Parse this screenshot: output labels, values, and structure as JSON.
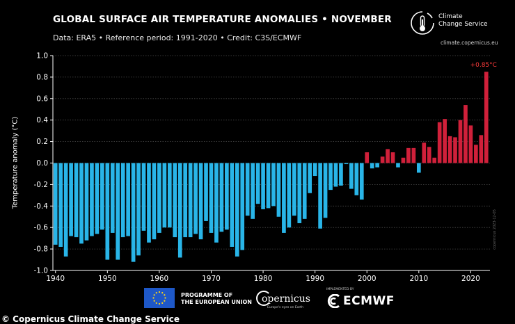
{
  "title": "GLOBAL SURFACE AIR TEMPERATURE ANOMALIES • NOVEMBER",
  "subtitle": "Data: ERA5 • Reference period: 1991-2020 • Credit: C3S/ECMWF",
  "logo": {
    "name": "Climate\nChange Service",
    "url": "climate.copernicus.eu"
  },
  "watermark": "copernicus 2023-12-05",
  "footer": {
    "eu_text": "PROGRAMME OF\nTHE EUROPEAN UNION",
    "copernicus": "opernicus",
    "copernicus_sub": "Europe's eyes on Earth",
    "ecmwf_implemented": "IMPLEMENTED BY",
    "ecmwf": "ECMWF",
    "credit_cut": "© Copernicus Climate Change Service"
  },
  "colors": {
    "positive": "#d0203a",
    "negative": "#29b5e8",
    "highlight": "#ff3b3b",
    "background": "#000000"
  },
  "chart_data": {
    "type": "bar",
    "title": "GLOBAL SURFACE AIR TEMPERATURE ANOMALIES • NOVEMBER",
    "xlabel": "",
    "ylabel": "Temperature anomaly (°C)",
    "ylim": [
      -1.0,
      1.0
    ],
    "yticks": [
      "-1.0",
      "-0.8",
      "-0.6",
      "-0.4",
      "-0.2",
      "0.0",
      "0.2",
      "0.4",
      "0.6",
      "0.8",
      "1.0"
    ],
    "xticks": [
      "1940",
      "1950",
      "1960",
      "1970",
      "1980",
      "1990",
      "2000",
      "2010",
      "2020"
    ],
    "grid": "horizontal",
    "annotation": {
      "label": "+0.85°C",
      "year": 2023
    },
    "x": [
      1940,
      1941,
      1942,
      1943,
      1944,
      1945,
      1946,
      1947,
      1948,
      1949,
      1950,
      1951,
      1952,
      1953,
      1954,
      1955,
      1956,
      1957,
      1958,
      1959,
      1960,
      1961,
      1962,
      1963,
      1964,
      1965,
      1966,
      1967,
      1968,
      1969,
      1970,
      1971,
      1972,
      1973,
      1974,
      1975,
      1976,
      1977,
      1978,
      1979,
      1980,
      1981,
      1982,
      1983,
      1984,
      1985,
      1986,
      1987,
      1988,
      1989,
      1990,
      1991,
      1992,
      1993,
      1994,
      1995,
      1996,
      1997,
      1998,
      1999,
      2000,
      2001,
      2002,
      2003,
      2004,
      2005,
      2006,
      2007,
      2008,
      2009,
      2010,
      2011,
      2012,
      2013,
      2014,
      2015,
      2016,
      2017,
      2018,
      2019,
      2020,
      2021,
      2022,
      2023
    ],
    "values": [
      -0.76,
      -0.78,
      -0.87,
      -0.68,
      -0.69,
      -0.75,
      -0.72,
      -0.68,
      -0.66,
      -0.62,
      -0.9,
      -0.65,
      -0.9,
      -0.69,
      -0.68,
      -0.92,
      -0.86,
      -0.63,
      -0.74,
      -0.71,
      -0.65,
      -0.6,
      -0.6,
      -0.69,
      -0.88,
      -0.69,
      -0.69,
      -0.66,
      -0.71,
      -0.54,
      -0.65,
      -0.74,
      -0.64,
      -0.62,
      -0.78,
      -0.87,
      -0.81,
      -0.49,
      -0.52,
      -0.38,
      -0.43,
      -0.42,
      -0.4,
      -0.5,
      -0.65,
      -0.6,
      -0.49,
      -0.56,
      -0.52,
      -0.28,
      -0.12,
      -0.61,
      -0.51,
      -0.25,
      -0.22,
      -0.21,
      -0.01,
      -0.24,
      -0.3,
      -0.34,
      0.1,
      -0.05,
      -0.04,
      0.06,
      0.13,
      0.1,
      -0.04,
      0.05,
      0.14,
      0.14,
      -0.09,
      0.19,
      0.15,
      0.05,
      0.38,
      0.41,
      0.25,
      0.24,
      0.4,
      0.54,
      0.35,
      0.17,
      0.26,
      0.85
    ]
  }
}
